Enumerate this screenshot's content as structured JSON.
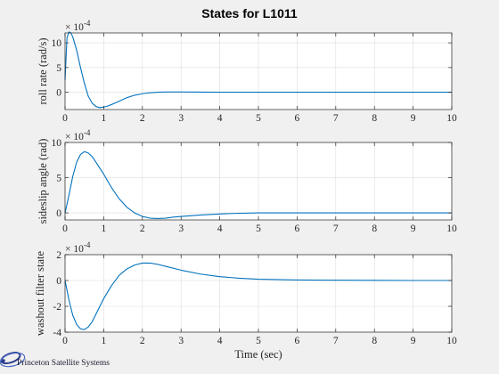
{
  "figure": {
    "title": "States for L1011",
    "background": "#f0f0f0",
    "axes_background": "#ffffff",
    "line_color": "#0072bd",
    "grid_color": "#dcdcdc",
    "footer_logo": "Princeton Satellite Systems"
  },
  "chart_data": [
    {
      "type": "line",
      "ylabel": "roll rate (rad/s)",
      "xlabel": "",
      "exponent_label": "× 10^-4",
      "exponent_base": "× 10",
      "exponent_power": "-4",
      "xlim": [
        0,
        10
      ],
      "ylim": [
        -3.5,
        12
      ],
      "xticks": [
        0,
        1,
        2,
        3,
        4,
        5,
        6,
        7,
        8,
        9,
        10
      ],
      "yticks": [
        0,
        5,
        10
      ],
      "grid": true,
      "series": [
        {
          "x": [
            0,
            0.05,
            0.1,
            0.15,
            0.2,
            0.3,
            0.4,
            0.5,
            0.6,
            0.7,
            0.8,
            0.9,
            1.0,
            1.1,
            1.2,
            1.4,
            1.6,
            1.8,
            2.0,
            2.2,
            2.4,
            2.6,
            3.0,
            3.5,
            4.0,
            5.0,
            6.0,
            7.0,
            8.0,
            9.0,
            10.0
          ],
          "y": [
            2.5,
            11.0,
            12.2,
            12.0,
            11.2,
            8.5,
            5.0,
            1.8,
            -0.8,
            -2.2,
            -2.9,
            -3.1,
            -3.0,
            -2.8,
            -2.5,
            -1.8,
            -1.1,
            -0.6,
            -0.3,
            -0.1,
            0.0,
            0.05,
            0.05,
            0.02,
            0.0,
            0.0,
            0.0,
            0.0,
            0.0,
            0.0,
            0.0
          ]
        }
      ]
    },
    {
      "type": "line",
      "ylabel": "sideslip angle (rad)",
      "xlabel": "",
      "exponent_label": "× 10^-4",
      "exponent_base": "× 10",
      "exponent_power": "-4",
      "xlim": [
        0,
        10
      ],
      "ylim": [
        -1,
        10
      ],
      "xticks": [
        0,
        1,
        2,
        3,
        4,
        5,
        6,
        7,
        8,
        9,
        10
      ],
      "yticks": [
        0,
        5,
        10
      ],
      "grid": true,
      "series": [
        {
          "x": [
            0,
            0.1,
            0.2,
            0.3,
            0.4,
            0.5,
            0.6,
            0.7,
            0.8,
            1.0,
            1.2,
            1.4,
            1.6,
            1.8,
            2.0,
            2.2,
            2.4,
            2.6,
            2.8,
            3.0,
            3.5,
            4.0,
            4.5,
            5.0,
            6.0,
            7.0,
            8.0,
            9.0,
            10.0
          ],
          "y": [
            0,
            2.5,
            5.2,
            7.2,
            8.3,
            8.7,
            8.5,
            8.0,
            7.2,
            5.5,
            3.6,
            2.0,
            0.8,
            0.0,
            -0.5,
            -0.75,
            -0.8,
            -0.75,
            -0.6,
            -0.5,
            -0.3,
            -0.15,
            -0.05,
            0.0,
            0.0,
            0.0,
            0.0,
            0.0,
            0.0
          ]
        }
      ]
    },
    {
      "type": "line",
      "ylabel": "washout filter state",
      "xlabel": "Time (sec)",
      "exponent_label": "× 10^-4",
      "exponent_base": "× 10",
      "exponent_power": "-4",
      "xlim": [
        0,
        10
      ],
      "ylim": [
        -4,
        2
      ],
      "xticks": [
        0,
        1,
        2,
        3,
        4,
        5,
        6,
        7,
        8,
        9,
        10
      ],
      "yticks": [
        -4,
        -2,
        0,
        2
      ],
      "grid": true,
      "series": [
        {
          "x": [
            0,
            0.1,
            0.2,
            0.3,
            0.4,
            0.5,
            0.6,
            0.7,
            0.8,
            0.9,
            1.0,
            1.2,
            1.4,
            1.6,
            1.8,
            2.0,
            2.2,
            2.4,
            2.6,
            3.0,
            3.5,
            4.0,
            4.5,
            5.0,
            6.0,
            7.0,
            8.0,
            9.0,
            10.0
          ],
          "y": [
            0,
            -1.5,
            -2.7,
            -3.4,
            -3.75,
            -3.8,
            -3.6,
            -3.2,
            -2.6,
            -2.0,
            -1.4,
            -0.4,
            0.4,
            0.9,
            1.2,
            1.35,
            1.35,
            1.25,
            1.1,
            0.8,
            0.5,
            0.3,
            0.18,
            0.1,
            0.04,
            0.02,
            0.01,
            0.0,
            0.0
          ]
        }
      ]
    }
  ]
}
